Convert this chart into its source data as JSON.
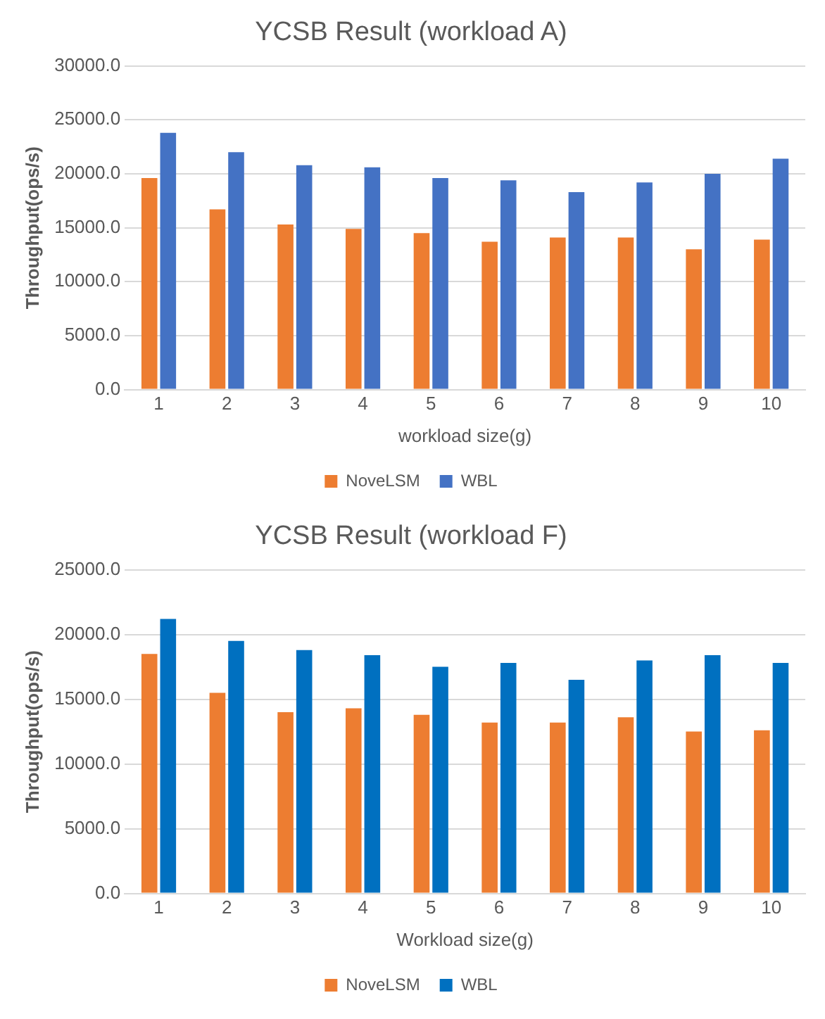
{
  "chart_data": [
    {
      "type": "bar",
      "title": "YCSB Result (workload A)",
      "xlabel": "workload size(g)",
      "ylabel": "Throughput(ops/s)",
      "categories": [
        "1",
        "2",
        "3",
        "4",
        "5",
        "6",
        "7",
        "8",
        "9",
        "10"
      ],
      "series": [
        {
          "name": "NoveLSM",
          "color": "#ed7d31",
          "values": [
            19600,
            16700,
            15300,
            14900,
            14500,
            13700,
            14100,
            14100,
            13000,
            13900
          ]
        },
        {
          "name": "WBL",
          "color": "#4472c4",
          "values": [
            23800,
            22000,
            20800,
            20600,
            19600,
            19400,
            18300,
            19200,
            20000,
            21400
          ]
        }
      ],
      "ylim": [
        0,
        30000
      ],
      "yticks": [
        {
          "value": 0,
          "label": "0.0"
        },
        {
          "value": 5000,
          "label": "5000.0"
        },
        {
          "value": 10000,
          "label": "10000.0"
        },
        {
          "value": 15000,
          "label": "15000.0"
        },
        {
          "value": 20000,
          "label": "20000.0"
        },
        {
          "value": 25000,
          "label": "25000.0"
        },
        {
          "value": 30000,
          "label": "30000.0"
        }
      ],
      "grid": "y",
      "legend": "bottom"
    },
    {
      "type": "bar",
      "title": "YCSB Result (workload F)",
      "xlabel": "Workload size(g)",
      "ylabel": "Throughput(ops/s)",
      "categories": [
        "1",
        "2",
        "3",
        "4",
        "5",
        "6",
        "7",
        "8",
        "9",
        "10"
      ],
      "series": [
        {
          "name": "NoveLSM",
          "color": "#ed7d31",
          "values": [
            18500,
            15500,
            14000,
            14300,
            13800,
            13200,
            13200,
            13600,
            12500,
            12600
          ]
        },
        {
          "name": "WBL",
          "color": "#0070c0",
          "values": [
            21200,
            19500,
            18800,
            18400,
            17500,
            17800,
            16500,
            18000,
            18400,
            17800
          ]
        }
      ],
      "ylim": [
        0,
        25000
      ],
      "yticks": [
        {
          "value": 0,
          "label": "0.0"
        },
        {
          "value": 5000,
          "label": "5000.0"
        },
        {
          "value": 10000,
          "label": "10000.0"
        },
        {
          "value": 15000,
          "label": "15000.0"
        },
        {
          "value": 20000,
          "label": "20000.0"
        },
        {
          "value": 25000,
          "label": "25000.0"
        }
      ],
      "grid": "y",
      "legend": "bottom"
    }
  ]
}
